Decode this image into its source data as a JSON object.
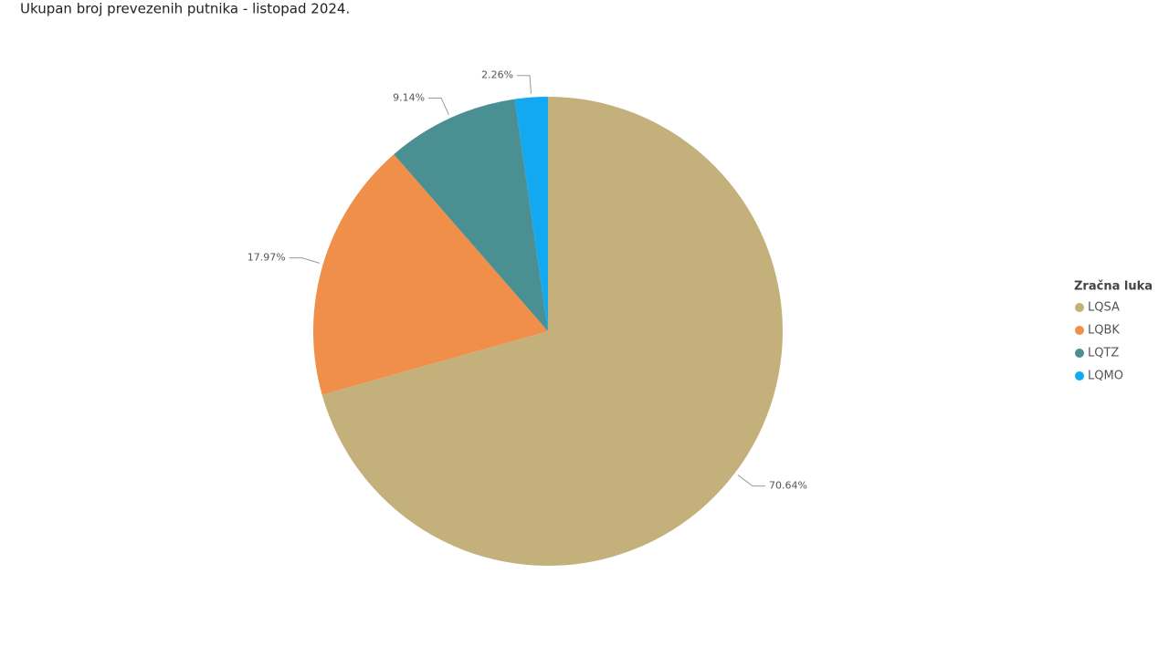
{
  "chart_data": {
    "type": "pie",
    "title": "Ukupan broj prevezenih putnika - listopad 2024.",
    "legend_title": "Zračna luka",
    "legend": "right",
    "categories": [
      "LQSA",
      "LQBK",
      "LQTZ",
      "LQMO"
    ],
    "values": [
      70.64,
      17.97,
      9.14,
      2.26
    ],
    "value_labels": [
      "70.64%",
      "17.97%",
      "9.14%",
      "2.26%"
    ],
    "colors": [
      "#c4b07b",
      "#f08f4a",
      "#4a9093",
      "#12a9f0"
    ]
  }
}
